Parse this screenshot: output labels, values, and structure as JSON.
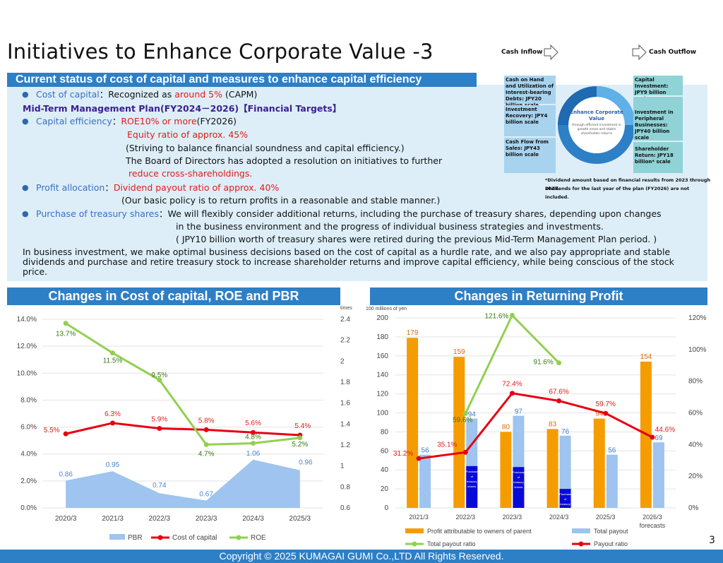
{
  "title": "Initiatives to Enhance Corporate Value -3",
  "flow": {
    "inflow": "Cash Inflow",
    "outflow": "Cash Outflow"
  },
  "banner_top": "Current status of cost of capital and measures to enhance capital efficiency",
  "status": {
    "coc_label": "Cost of capital",
    "coc_text_a": "：Recognized as ",
    "coc_val": "around 5%",
    "coc_text_b": " (CAPM)",
    "mtp": "Mid-Term Management Plan(FY2024－2026)【Financial Targets】",
    "ce_label": "Capital efficiency",
    "ce_colon": "：",
    "ce_val": "ROE10% or more",
    "ce_year": "(FY2026)",
    "equity": "Equity ratio of approx. 45%",
    "striving": "(Striving to balance financial soundness and capital  efficiency.)",
    "board": "The Board of Directors has adopted a resolution on initiatives to further",
    "reduce": "reduce cross-shareholdings.",
    "pa_label": "Profit allocation",
    "pa_colon": "：",
    "pa_val": "Dividend payout ratio of approx. 40%",
    "policy": "(Our basic policy is to return profits in a reasonable and stable manner.)",
    "ts_label": "Purchase of treasury shares",
    "ts_line1": "：We will flexibly consider additional returns, including the purchase of treasury shares, depending  upon changes",
    "ts_line2": "in the business environment and the progress of individual business strategies and investments.",
    "ts_line3": "( JPY10 billion worth of treasury shares were retired during the previous Mid-Term Management Plan period. )",
    "para": "In business investment, we make optimal business decisions based on the cost of capital as a hurdle rate, and we also pay appropriate and stable dividends and purchase and retire treasury stock to increase shareholder returns and improve capital efficiency, while being conscious of the stock price."
  },
  "diagram": {
    "cash_on_hand": "Cash on Hand and Utilization of Interest-bearing Debts: JPY20 billion scale",
    "inv_recovery": "Investment Recovery: JPY4 billion scale",
    "cash_flow": "Cash Flow from Sales: JPY43 billion scale",
    "center_title": "Enhance Corporate Value",
    "center_sub": "through efficient investment in growth areas and stable shareholder returns",
    "capital_inv": "Capital Investment: JPY9 billion scale",
    "peripheral": "Investment in Peripheral Businesses: JPY40 billion scale",
    "shareholder": "Shareholder Return: JPY18 billion* scale",
    "note1": "*Dividend amount based on financial results from 2023 through 2025.",
    "note2": "Dividends for the last year of the plan (FY2026) are not included."
  },
  "left_banner": "Changes in Cost of capital, ROE and PBR",
  "right_banner": "Changes in Returning Profit",
  "chart_data": [
    {
      "type": "line",
      "categories": [
        "2020/3",
        "2021/3",
        "2022/3",
        "2023/3",
        "2024/3",
        "2025/3"
      ],
      "y_left_ticks": [
        "0.0%",
        "2.0%",
        "4.0%",
        "6.0%",
        "8.0%",
        "10.0%",
        "12.0%",
        "14.0%"
      ],
      "y_right_ticks": [
        "0.6",
        "0.8",
        "1",
        "1.2",
        "1.4",
        "1.6",
        "1.8",
        "2",
        "2.2",
        "2.4"
      ],
      "y_right_unit": "times",
      "ylim_left": [
        0,
        14
      ],
      "ylim_right": [
        0.6,
        2.4
      ],
      "series": [
        {
          "name": "PBR",
          "kind": "area",
          "axis": "right",
          "color": "#9ec4ef",
          "values": [
            0.86,
            0.95,
            0.74,
            0.67,
            1.06,
            0.96
          ],
          "labels": [
            "0.86",
            "0.95",
            "0.74",
            "0.67",
            "1.06",
            "0.96"
          ]
        },
        {
          "name": "Cost of capital",
          "kind": "line",
          "axis": "left",
          "color": "#e60012",
          "values": [
            5.5,
            6.3,
            5.9,
            5.8,
            5.6,
            5.4
          ],
          "labels": [
            "5.5%",
            "6.3%",
            "5.9%",
            "5.8%",
            "5.6%",
            "5.4%"
          ]
        },
        {
          "name": "ROE",
          "kind": "line",
          "axis": "left",
          "color": "#92d050",
          "values": [
            13.7,
            11.5,
            9.5,
            4.7,
            4.8,
            5.2
          ],
          "labels": [
            "13.7%",
            "11.5%",
            "9.5%",
            "4.7%",
            "4.8%",
            "5.2%"
          ]
        }
      ]
    },
    {
      "type": "bar",
      "categories": [
        "2021/3",
        "2022/3",
        "2023/3",
        "2024/3",
        "2025/3",
        "2026/3 forecasts"
      ],
      "y_left_unit": "100 millions of yen",
      "y_left_ticks": [
        "0",
        "20",
        "40",
        "60",
        "80",
        "100",
        "120",
        "140",
        "160",
        "180",
        "200"
      ],
      "y_right_ticks": [
        "0%",
        "20%",
        "40%",
        "60%",
        "80%",
        "100%",
        "120%"
      ],
      "ylim_left": [
        0,
        200
      ],
      "ylim_right": [
        0,
        120
      ],
      "series": [
        {
          "name": "Profit attributable to owners of parent",
          "kind": "bar",
          "color": "#f59c00",
          "values": [
            179,
            159,
            80,
            83,
            94,
            154
          ]
        },
        {
          "name": "Total payout",
          "kind": "bar",
          "color": "#9ec4ef",
          "values": [
            56,
            94,
            97,
            76,
            56,
            69
          ]
        },
        {
          "name": "Total payout ratio",
          "kind": "line",
          "axis": "right",
          "color": "#92d050",
          "values": [
            null,
            59.6,
            121.6,
            91.6,
            null,
            null
          ],
          "labels": [
            "",
            "59.6%",
            "121.6%",
            "91.6%",
            "",
            ""
          ]
        },
        {
          "name": "Payout ratio",
          "kind": "line",
          "axis": "right",
          "color": "#e60012",
          "values": [
            31.2,
            35.1,
            72.4,
            67.6,
            59.7,
            44.6
          ],
          "labels": [
            "31.2%",
            "35.1%",
            "72.4%",
            "67.6%",
            "59.7%",
            "44.6%"
          ]
        }
      ],
      "treasury": [
        {
          "category": "2022/3",
          "value": 44,
          "label": "Purchase of treasury shares 44"
        },
        {
          "category": "2023/3",
          "value": 43,
          "label": "Purchase of treasury shares 43"
        },
        {
          "category": "2024/3",
          "value": 20,
          "label": "Purchase of treasury shares 20"
        }
      ]
    }
  ],
  "footer": "Copyright © 2025 KUMAGAI  GUMI Co.,LTD All Rights Reserved.",
  "page_number": "3"
}
